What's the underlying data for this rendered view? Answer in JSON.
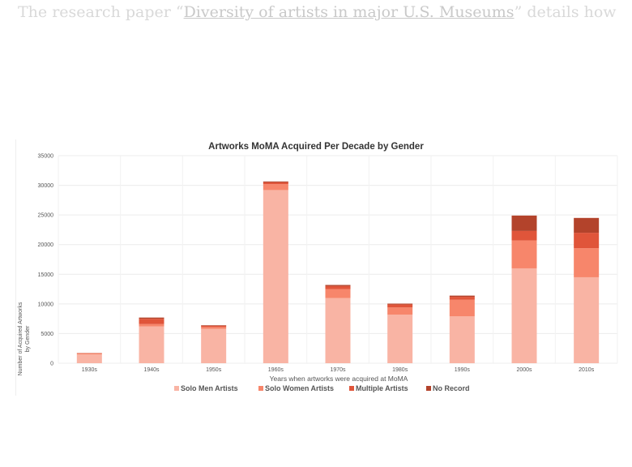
{
  "intro": {
    "before": "The research paper “",
    "link": "Diversity of artists in major U.S. Museums",
    "after": "” details how"
  },
  "chart_data": {
    "type": "bar",
    "stacked": true,
    "title": "Artworks MoMA Acquired Per Decade by Gender",
    "xlabel": "Years when artworks were acquired at MoMA",
    "ylabel_lines": [
      "Number of Acquired Artworks",
      "by Gender"
    ],
    "ylim": [
      0,
      35000
    ],
    "yticks": [
      0,
      5000,
      10000,
      15000,
      20000,
      25000,
      30000,
      35000
    ],
    "grid": true,
    "legend_position": "bottom",
    "categories": [
      "1930s",
      "1940s",
      "1950s",
      "1960s",
      "1970s",
      "1980s",
      "1990s",
      "2000s",
      "2010s"
    ],
    "series": [
      {
        "name": "Solo Men Artists",
        "color": "#f9b4a4",
        "values": [
          1500,
          6200,
          5800,
          29200,
          11000,
          8200,
          7900,
          16000,
          14500
        ]
      },
      {
        "name": "Solo Women Artists",
        "color": "#f7866b",
        "values": [
          150,
          400,
          300,
          1000,
          1500,
          1200,
          2800,
          4700,
          4900
        ]
      },
      {
        "name": "Multiple Artists",
        "color": "#e0553a",
        "values": [
          50,
          900,
          200,
          300,
          500,
          500,
          500,
          1600,
          2600
        ]
      },
      {
        "name": "No Record",
        "color": "#b3432b",
        "values": [
          20,
          200,
          100,
          150,
          200,
          150,
          200,
          2600,
          2500
        ]
      }
    ]
  }
}
